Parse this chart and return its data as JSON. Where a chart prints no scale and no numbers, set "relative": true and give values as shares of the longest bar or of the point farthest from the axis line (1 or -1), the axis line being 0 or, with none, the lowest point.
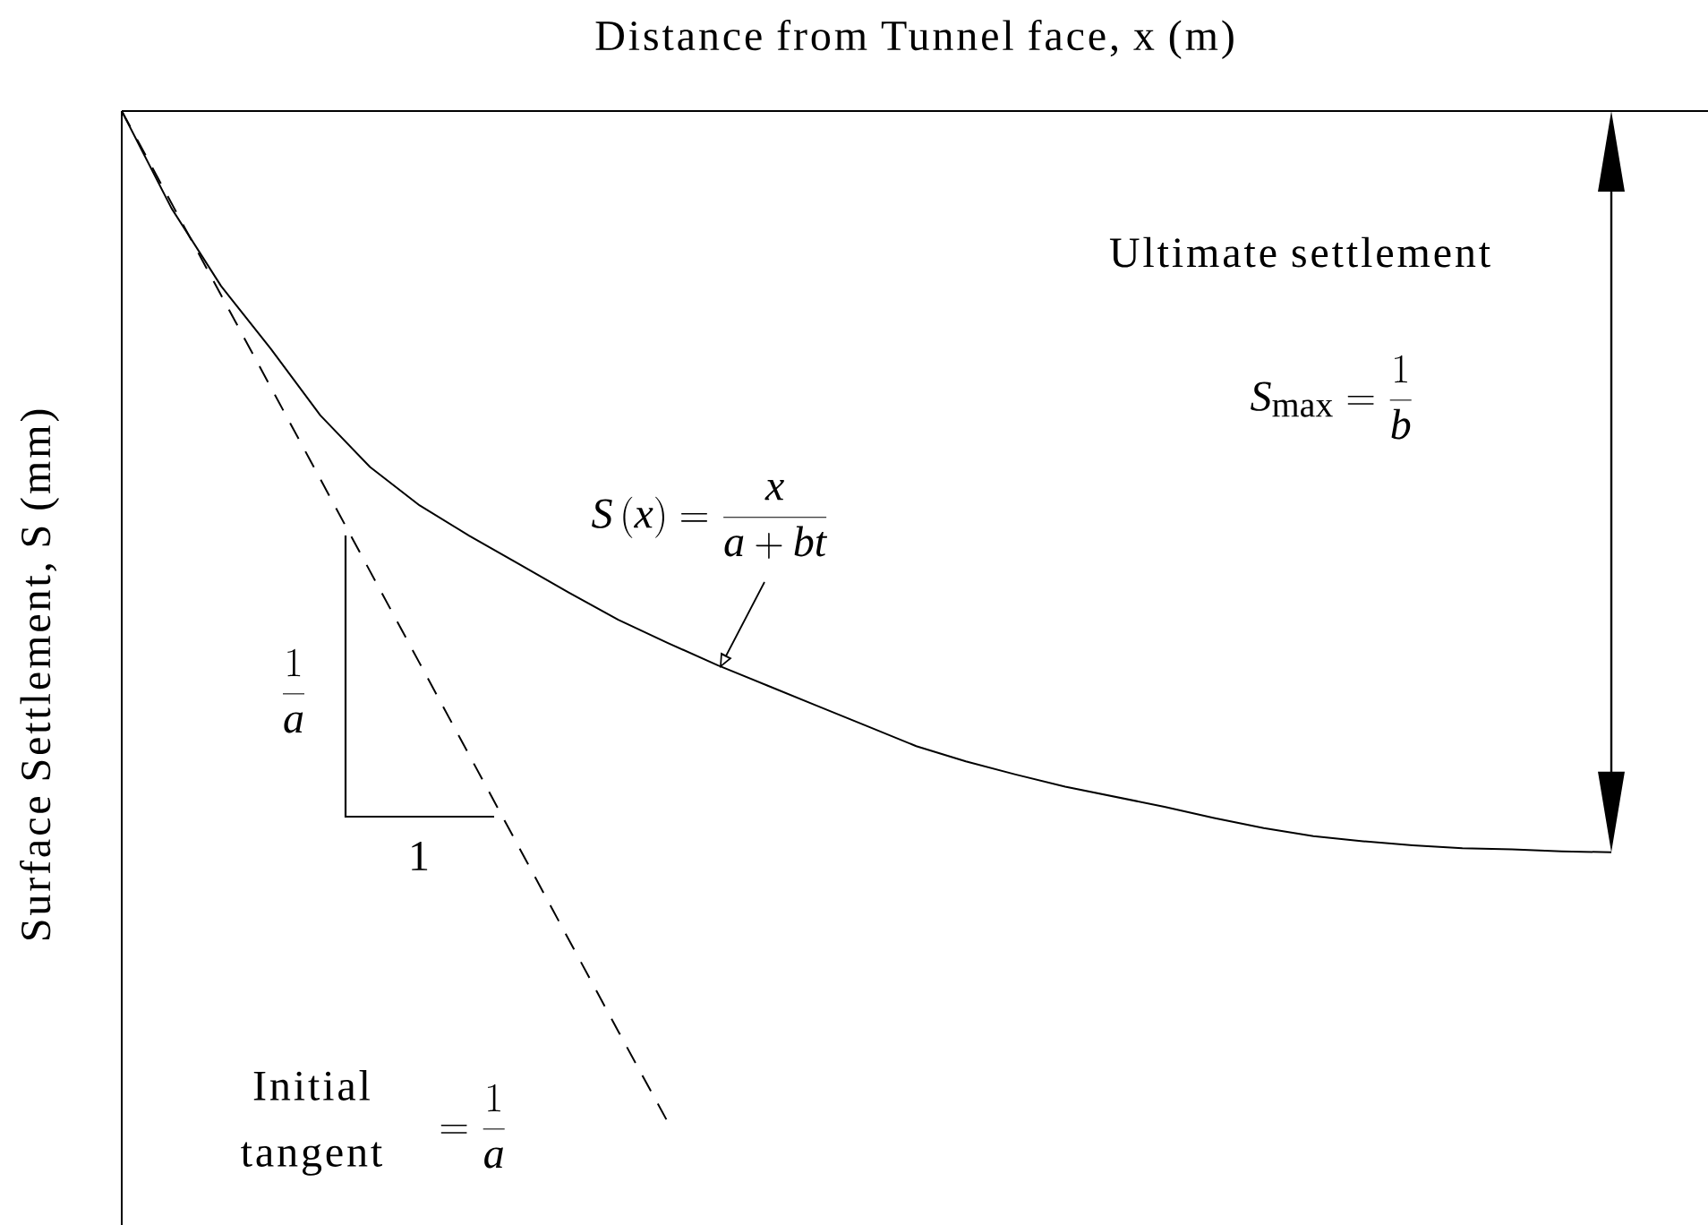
{
  "chart_data": {
    "type": "line",
    "relative": true,
    "marker": "none",
    "xlabel": "Distance from Tunnel face, x (m)",
    "ylabel": "Surface Settlement, S (mm)",
    "categories": [
      null,
      null,
      null,
      null,
      null,
      null,
      null,
      null,
      null,
      null,
      null,
      null,
      null,
      null,
      null,
      null,
      null,
      null,
      null,
      null,
      null,
      null,
      null,
      null,
      null,
      null,
      null,
      null,
      null,
      null,
      null
    ],
    "series": [
      {
        "color": "#000000",
        "line_style": "solid",
        "values": [
          0,
          -0.096,
          -0.173,
          -0.235,
          -0.301,
          -0.352,
          -0.39,
          -0.42,
          -0.448,
          -0.476,
          -0.503,
          -0.526,
          -0.548,
          -0.568,
          -0.588,
          -0.608,
          -0.628,
          -0.643,
          -0.656,
          -0.668,
          -0.678,
          -0.688,
          -0.699,
          -0.709,
          -0.717,
          -0.722,
          -0.726,
          -0.729,
          -0.73,
          -0.732,
          -0.733
        ]
      },
      {
        "color": "#000000",
        "line_style": "dashed",
        "values": [
          0,
          -0.091,
          -0.182,
          -0.273,
          -0.364,
          -0.455,
          -0.546,
          -0.637,
          -0.728,
          -0.819,
          -0.91,
          -1,
          null,
          null,
          null,
          null,
          null,
          null,
          null,
          null,
          null,
          null,
          null,
          null,
          null,
          null,
          null,
          null,
          null,
          null,
          null
        ]
      }
    ],
    "annotations": [
      "Ultimate settlement",
      "S_{\\max} = \\frac{1}{b}",
      "S\\,(x) = \\frac{x}{a + bt}",
      "\\frac{1}{a}",
      "1",
      "Initial tangent",
      "= \\frac{1}{a}"
    ]
  }
}
